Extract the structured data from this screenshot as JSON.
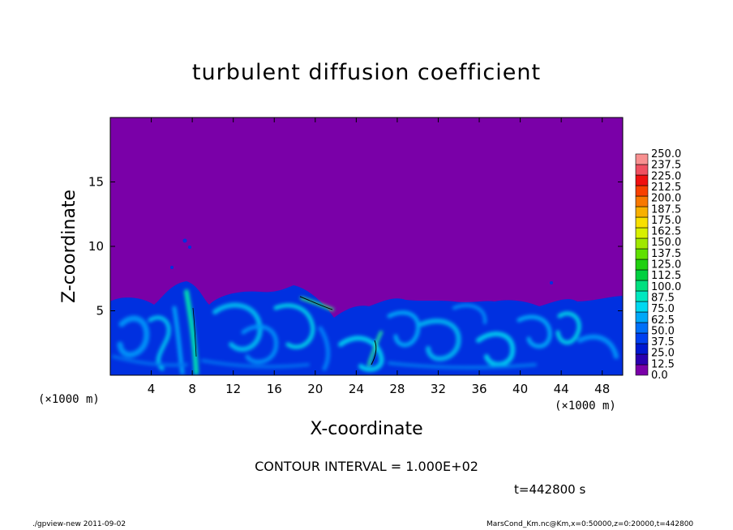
{
  "chart_data": {
    "type": "heatmap",
    "title": "turbulent diffusion coefficient",
    "xlabel": "X-coordinate",
    "ylabel": "Z-coordinate",
    "x_unit_label": "(×1000 m)",
    "x_unit_label_right": "(×1000 m)",
    "xlim": [
      0,
      50
    ],
    "ylim": [
      0,
      20
    ],
    "x_ticks": [
      4,
      8,
      12,
      16,
      20,
      24,
      28,
      32,
      36,
      40,
      44,
      48
    ],
    "y_ticks": [
      5,
      10,
      15
    ],
    "colorbar_levels": [
      "0.0",
      "12.5",
      "25.0",
      "37.5",
      "50.0",
      "62.5",
      "75.0",
      "87.5",
      "100.0",
      "112.5",
      "125.0",
      "137.5",
      "150.0",
      "162.5",
      "175.0",
      "187.5",
      "200.0",
      "212.5",
      "225.0",
      "237.5",
      "250.0"
    ],
    "colorbar_colors": [
      "#7a00a8",
      "#2a00b0",
      "#0018d0",
      "#0040f0",
      "#0070f8",
      "#00a8f8",
      "#00d8f0",
      "#00e8c0",
      "#00e080",
      "#00d040",
      "#20d010",
      "#60e000",
      "#a0e800",
      "#d8f000",
      "#f8e000",
      "#f8b000",
      "#f87800",
      "#f84000",
      "#f01010",
      "#f05060",
      "#f89090"
    ],
    "background_color": "#7a00a8",
    "boundary_layer_top_km": 6,
    "annotation_contour": "CONTOUR INTERVAL = 1.000E+02",
    "annotation_time": "t=442800 s"
  },
  "footer": {
    "left": "./gpview-new   2011-09-02",
    "right": "MarsCond_Km.nc@Km,x=0:50000,z=0:20000,t=442800"
  }
}
